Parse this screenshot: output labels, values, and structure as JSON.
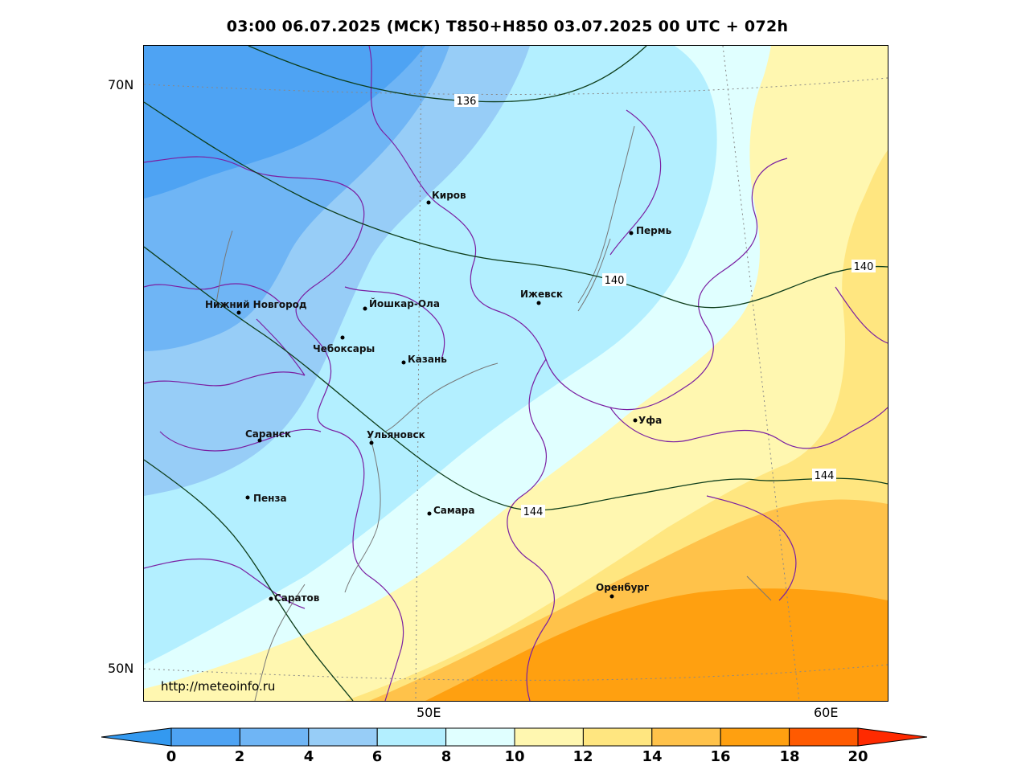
{
  "title": "03:00 06.07.2025 (МСК) T850+H850 03.07.2025 00 UTC + 072h",
  "watermark": "http://meteoinfo.ru",
  "axes": {
    "lat_labels": [
      "70N",
      "50N"
    ],
    "lon_labels": [
      "50E",
      "60E"
    ]
  },
  "colorbar": {
    "ticks": [
      "0",
      "2",
      "4",
      "6",
      "8",
      "10",
      "12",
      "14",
      "16",
      "18",
      "20"
    ],
    "colors": [
      "#3399f0",
      "#4ea3f3",
      "#6fb5f5",
      "#97cdf7",
      "#b3efff",
      "#e0ffff",
      "#fff7b0",
      "#ffe680",
      "#ffc24a",
      "#ffa010",
      "#ff5a00",
      "#ff2a00"
    ]
  },
  "isohypses": {
    "labels": [
      "136",
      "140",
      "140",
      "144",
      "144"
    ]
  },
  "cities": [
    {
      "name": "Киров"
    },
    {
      "name": "Пермь"
    },
    {
      "name": "Нижний Новгород"
    },
    {
      "name": "Йошкар-Ола"
    },
    {
      "name": "Ижевск"
    },
    {
      "name": "Чебоксары"
    },
    {
      "name": "Казань"
    },
    {
      "name": "Уфа"
    },
    {
      "name": "Саранск"
    },
    {
      "name": "Ульяновск"
    },
    {
      "name": "Пенза"
    },
    {
      "name": "Самара"
    },
    {
      "name": "Оренбург"
    },
    {
      "name": "Саратов"
    }
  ]
}
